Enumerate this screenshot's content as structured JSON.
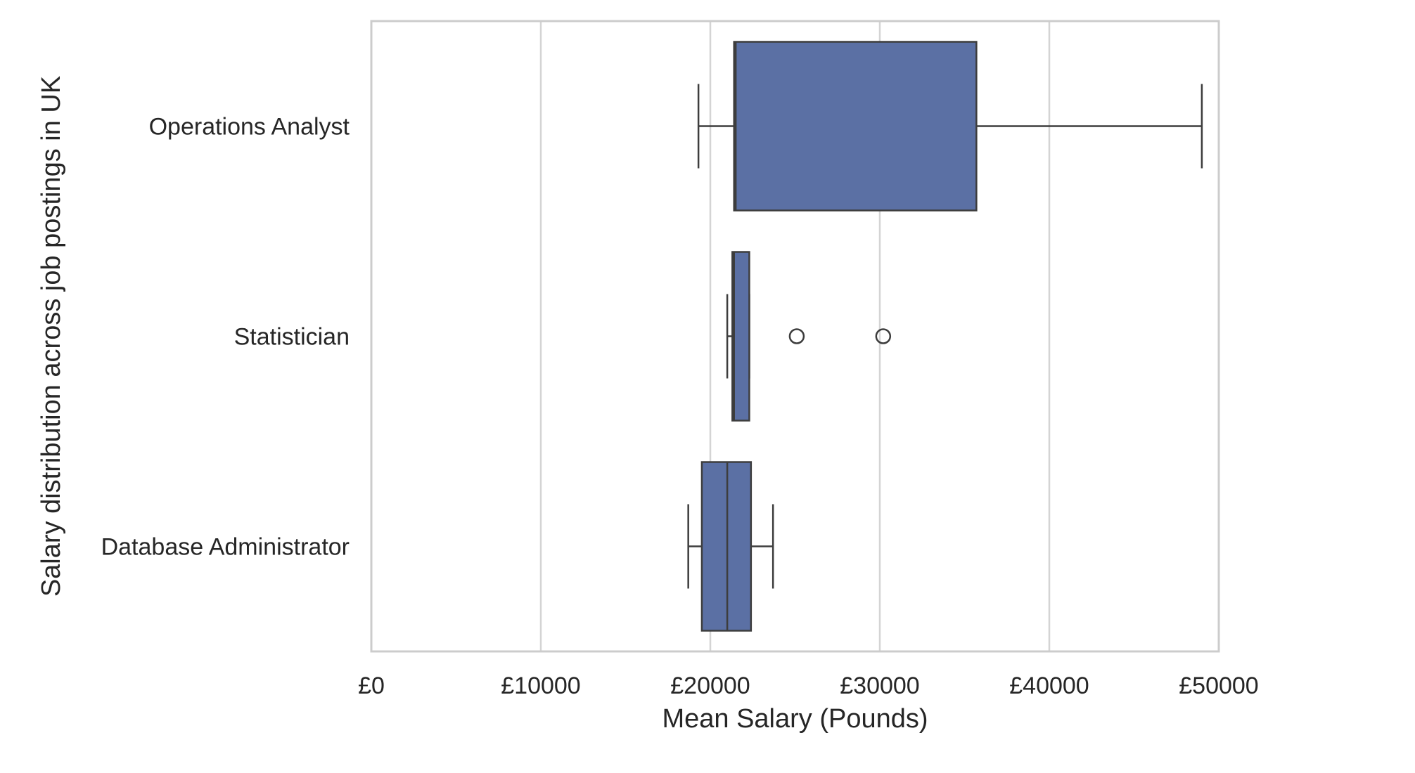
{
  "chart_data": {
    "type": "boxplot",
    "orientation": "horizontal",
    "xlabel": "Mean Salary (Pounds)",
    "ylabel": "Salary distribution across job postings in UK",
    "xlim": [
      0,
      50000
    ],
    "x_ticks": [
      0,
      10000,
      20000,
      30000,
      40000,
      50000
    ],
    "x_tick_labels": [
      "£0",
      "£10000",
      "£20000",
      "£30000",
      "£40000",
      "£50000"
    ],
    "grid": "vertical",
    "box_color": "#5b70a4",
    "categories": [
      "Operations Analyst",
      "Statistician",
      "Database Administrator"
    ],
    "boxes": [
      {
        "category": "Operations Analyst",
        "whisker_low": 19300,
        "q1": 21400,
        "median": 21500,
        "q3": 35700,
        "whisker_high": 49000,
        "outliers": []
      },
      {
        "category": "Statistician",
        "whisker_low": 21000,
        "q1": 21300,
        "median": 21400,
        "q3": 22300,
        "whisker_high": 22300,
        "outliers": [
          25100,
          30200
        ]
      },
      {
        "category": "Database Administrator",
        "whisker_low": 18700,
        "q1": 19500,
        "median": 21000,
        "q3": 22400,
        "whisker_high": 23700,
        "outliers": []
      }
    ]
  }
}
